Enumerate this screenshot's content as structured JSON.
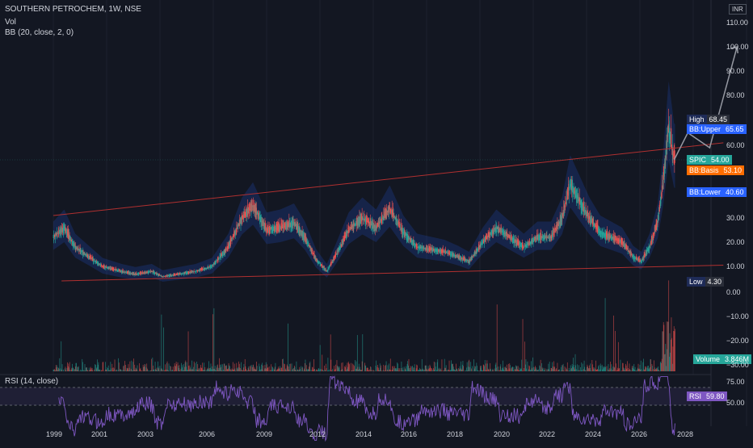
{
  "header": {
    "symbol_line": "SOUTHERN PETROCHEM, 1W, NSE",
    "vol_label": "Vol",
    "bb_label": "BB (20, close, 2, 0)",
    "rsi_label": "RSI (14, close)",
    "currency": "INR"
  },
  "price_axis": {
    "ticks": [
      "110.00",
      "100.00",
      "90.00",
      "80.00",
      "60.00",
      "30.00",
      "20.00",
      "10.00"
    ]
  },
  "volume_axis": {
    "ticks": [
      "0.00",
      "−10.00",
      "−20.00",
      "−30.00"
    ]
  },
  "rsi_axis": {
    "ticks": [
      "75.00",
      "50.00"
    ]
  },
  "x_axis": {
    "ticks": [
      "1999",
      "2001",
      "2003",
      "2006",
      "2009",
      "2012",
      "2014",
      "2016",
      "2018",
      "2020",
      "2022",
      "2024",
      "2026",
      "2028"
    ]
  },
  "badges": {
    "high": {
      "label": "High",
      "value": "68.45",
      "color": "#2a2e39",
      "label_bg": "#1e2b57"
    },
    "bb_upper": {
      "label": "BB:Upper",
      "value": "65.65",
      "color": "#2962ff"
    },
    "spic": {
      "label": "SPIC",
      "value": "54.00",
      "color": "#26a69a"
    },
    "bb_basis": {
      "label": "BB:Basis",
      "value": "53.10",
      "color": "#ff6d00"
    },
    "bb_lower": {
      "label": "BB:Lower",
      "value": "40.60",
      "color": "#2962ff"
    },
    "low": {
      "label": "Low",
      "value": "4.30",
      "color": "#1e2b57"
    },
    "volume": {
      "label": "Volume",
      "value": "3.846M",
      "color": "#26a69a"
    },
    "rsi": {
      "label": "RSI",
      "value": "59.80",
      "color": "#7e57c2"
    }
  },
  "colors": {
    "background": "#131722",
    "up": "#26a69a",
    "down": "#ef5350",
    "trendline": "#b03030",
    "projection": "#9598a1",
    "bb_fill": "#2962ff",
    "rsi_line": "#7e57c2",
    "grid": "#1e222d"
  },
  "chart_data": {
    "type": "candlestick",
    "timeframe": "1W",
    "price_series_approx": {
      "x": [
        1999.0,
        1999.4,
        1999.8,
        2000.3,
        2000.8,
        2001.5,
        2002.0,
        2002.6,
        2003.0,
        2003.6,
        2004.2,
        2004.8,
        2005.4,
        2005.9,
        2006.3,
        2006.8,
        2007.3,
        2007.8,
        2008.2,
        2008.6,
        2009.0,
        2009.3,
        2009.8,
        2010.3,
        2010.8,
        2011.3,
        2011.8,
        2012.3,
        2012.8,
        2013.3,
        2013.8,
        2014.2,
        2014.7,
        2015.2,
        2015.7,
        2016.2,
        2016.7,
        2017.2,
        2017.6,
        2017.9,
        2018.2,
        2018.6,
        2019.0,
        2019.4,
        2019.8,
        2020.2,
        2020.5,
        2020.8,
        2021.1,
        2021.3,
        2021.5,
        2021.7
      ],
      "close": [
        22,
        26,
        18,
        14,
        10,
        8,
        7,
        8,
        6,
        7,
        8,
        10,
        18,
        30,
        35,
        25,
        26,
        28,
        22,
        13,
        8,
        14,
        25,
        30,
        26,
        34,
        24,
        18,
        17,
        16,
        14,
        12,
        20,
        26,
        22,
        18,
        22,
        22,
        30,
        44,
        38,
        30,
        24,
        22,
        20,
        14,
        12,
        18,
        28,
        45,
        68,
        54
      ]
    },
    "trendline_upper": {
      "from": [
        1999.0,
        31
      ],
      "to": [
        2023.5,
        61
      ]
    },
    "trendline_lower": {
      "from": [
        1999.3,
        4.3
      ],
      "to": [
        2023.5,
        10.5
      ]
    },
    "projection_path": [
      [
        2021.7,
        54
      ],
      [
        2022.2,
        65
      ],
      [
        2023.0,
        59
      ],
      [
        2024.0,
        100
      ]
    ],
    "bollinger": {
      "upper": 65.65,
      "basis": 53.1,
      "lower": 40.6
    },
    "volume_latest": "3.846M",
    "rsi_latest": 59.8,
    "rsi_levels": [
      75,
      50
    ],
    "ylim": [
      0,
      112
    ]
  }
}
